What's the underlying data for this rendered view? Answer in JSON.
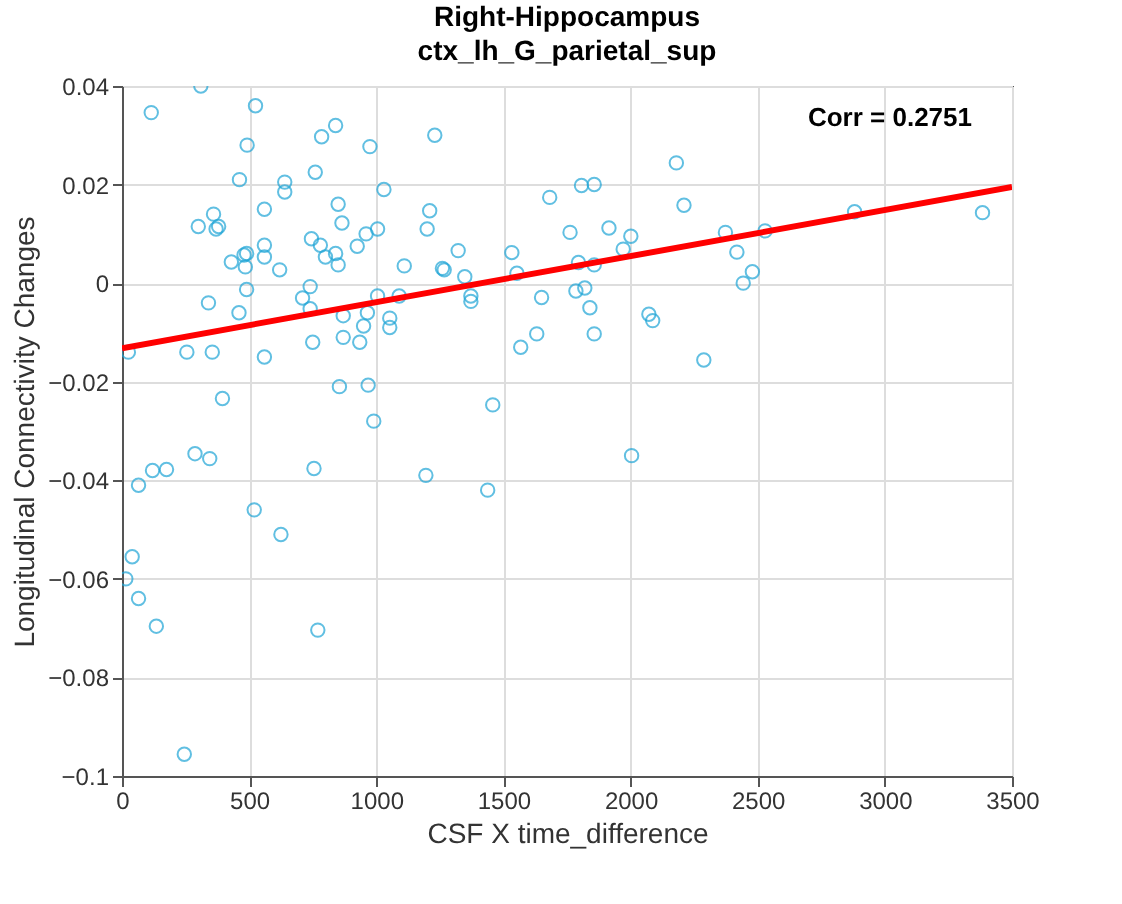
{
  "chart_data": {
    "type": "scatter",
    "title": "Right-Hippocampus",
    "subtitle": "ctx_lh_G_parietal_sup",
    "xlabel": "CSF X time_difference",
    "ylabel": "Longitudinal Connectivity Changes",
    "annotations": [
      "Corr = 0.2751"
    ],
    "xlim": [
      0,
      3500
    ],
    "xticks": [
      0,
      500,
      1000,
      1500,
      2000,
      2500,
      3000,
      3500
    ],
    "ylim": [
      -0.1,
      0.04
    ],
    "yticks": [
      -0.1,
      -0.08,
      -0.06,
      -0.04,
      -0.02,
      0,
      0.02,
      0.04
    ],
    "grid": true,
    "series": [
      {
        "marker": "circle",
        "color": "#1fa5d6",
        "x": [
          115,
          310,
          525,
          492,
          462,
          640,
          640,
          760,
          785,
          840,
          975,
          1030,
          1230,
          300,
          360,
          370,
          380,
          560,
          850,
          865,
          745,
          960,
          1005,
          925,
          430,
          480,
          485,
          490,
          560,
          560,
          620,
          780,
          800,
          840,
          850,
          1110,
          1260,
          1210,
          1200,
          340,
          460,
          490,
          560,
          355,
          255,
          25,
          710,
          740,
          740,
          750,
          870,
          870,
          935,
          950,
          965,
          1005,
          1053,
          1053,
          1090,
          855,
          968,
          395,
          287,
          345,
          120,
          175,
          65,
          520,
          625,
          755,
          990,
          1195,
          40,
          15,
          65,
          135,
          770,
          245,
          1322,
          1267,
          1348,
          1372,
          1372,
          1533,
          1553,
          1650,
          1568,
          1631,
          1682,
          1807,
          1857,
          1762,
          1795,
          1857,
          1785,
          1820,
          1840,
          1857,
          1915,
          2001,
          1971,
          2072,
          2087,
          2180,
          2210,
          2288,
          2373,
          2418,
          2479,
          2443,
          2529,
          2881,
          3384,
          1458,
          1438,
          2004
        ],
        "values": [
          0.0346,
          0.04,
          0.036,
          0.028,
          0.021,
          0.0205,
          0.0185,
          0.0225,
          0.0297,
          0.032,
          0.0277,
          0.019,
          0.03,
          0.0115,
          0.014,
          0.011,
          0.0115,
          0.015,
          0.016,
          0.0122,
          0.009,
          0.01,
          0.011,
          0.0075,
          0.0043,
          0.0057,
          0.0033,
          0.006,
          0.0077,
          0.0053,
          0.0027,
          0.0077,
          0.0053,
          0.006,
          0.0037,
          0.0035,
          0.003,
          0.0147,
          0.011,
          -0.004,
          -0.006,
          -0.0013,
          -0.015,
          -0.014,
          -0.014,
          -0.014,
          -0.003,
          -0.0007,
          -0.0052,
          -0.012,
          -0.0066,
          -0.011,
          -0.012,
          -0.0087,
          -0.006,
          -0.0026,
          -0.0071,
          -0.009,
          -0.0026,
          -0.021,
          -0.0207,
          -0.0234,
          -0.0346,
          -0.0356,
          -0.038,
          -0.0378,
          -0.041,
          -0.046,
          -0.051,
          -0.0376,
          -0.028,
          -0.039,
          -0.0555,
          -0.06,
          -0.064,
          -0.0696,
          -0.0704,
          -0.0956,
          0.0066,
          0.0027,
          0.0013,
          -0.0026,
          -0.0037,
          0.0062,
          0.002,
          -0.0029,
          -0.013,
          -0.0103,
          0.0174,
          0.0198,
          0.02,
          0.0103,
          0.0042,
          0.0037,
          -0.0016,
          -0.001,
          -0.005,
          -0.0103,
          0.0112,
          0.0095,
          0.0069,
          -0.0063,
          -0.0076,
          0.0244,
          0.0158,
          -0.0156,
          0.0103,
          0.0063,
          0.0023,
          0,
          0.0106,
          0.0145,
          0.0143,
          -0.0247,
          -0.042,
          -0.035
        ]
      },
      {
        "type": "line",
        "color": "#ff0000",
        "x": [
          0,
          3500
        ],
        "values": [
          -0.0132,
          0.0195
        ]
      }
    ]
  }
}
